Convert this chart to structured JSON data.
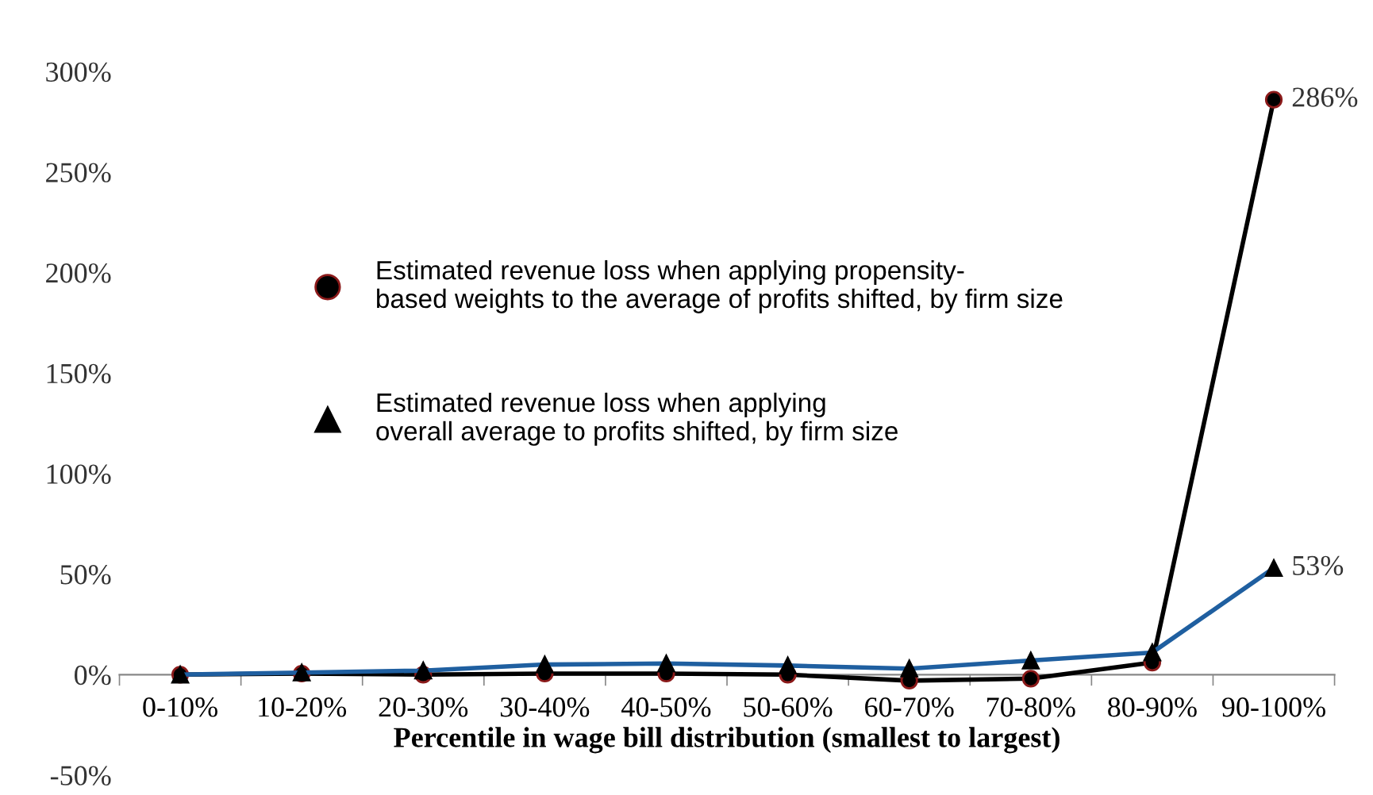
{
  "chart_data": {
    "type": "line",
    "xlabel": "Percentile in wage bill distribution (smallest to largest)",
    "categories": [
      "0-10%",
      "10-20%",
      "20-30%",
      "30-40%",
      "40-50%",
      "50-60%",
      "60-70%",
      "70-80%",
      "80-90%",
      "90-100%"
    ],
    "series": [
      {
        "name": "Estimated revenue loss when applying propensity-\nbased weights to the average of profits shifted, by firm size",
        "color": "#000000",
        "marker": "circle",
        "values": [
          0,
          0.5,
          0,
          0.5,
          0.5,
          0,
          -3,
          -2,
          6,
          286
        ],
        "value_labels": [
          null,
          null,
          null,
          null,
          null,
          null,
          null,
          null,
          null,
          "286%"
        ]
      },
      {
        "name": "Estimated revenue loss when applying\noverall average to profits shifted, by firm size",
        "color": "#1f5fa0",
        "marker": "triangle",
        "values": [
          0,
          1,
          2,
          5,
          5.5,
          4.5,
          3,
          7,
          11,
          53
        ],
        "value_labels": [
          null,
          null,
          null,
          null,
          null,
          null,
          null,
          null,
          null,
          "53%"
        ]
      }
    ],
    "ylim": [
      -50,
      300
    ],
    "yticks": [
      {
        "value": -50,
        "label": "-50%"
      },
      {
        "value": 0,
        "label": "0%"
      },
      {
        "value": 50,
        "label": "50%"
      },
      {
        "value": 100,
        "label": "100%"
      },
      {
        "value": 150,
        "label": "150%"
      },
      {
        "value": 200,
        "label": "200%"
      },
      {
        "value": 250,
        "label": "250%"
      },
      {
        "value": 300,
        "label": "300%"
      }
    ],
    "legend": "center left",
    "grid": false
  }
}
